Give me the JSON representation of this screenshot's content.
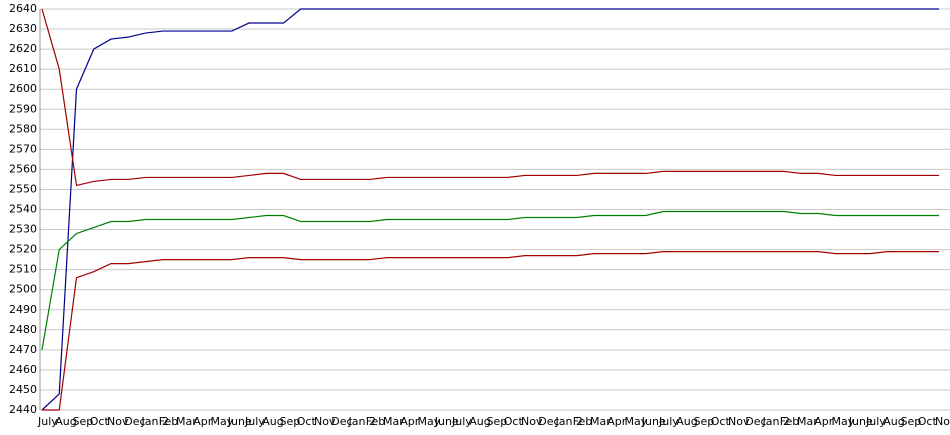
{
  "chart_data": {
    "type": "line",
    "categories": [
      "July",
      "Aug",
      "Sep",
      "Oct",
      "Nov",
      "Dec",
      "Jan 2",
      "Feb",
      "Mar",
      "Apr",
      "May",
      "June",
      "July",
      "Aug",
      "Sep",
      "Oct",
      "Nov",
      "Dec",
      "Jan 2",
      "Feb",
      "Mar",
      "Apr",
      "May",
      "June",
      "July",
      "Aug",
      "Sep",
      "Oct",
      "Nov",
      "Dec",
      "Jan 2",
      "Feb",
      "Mar",
      "Apr",
      "May",
      "June",
      "July",
      "Aug",
      "Sep",
      "Oct",
      "Nov",
      "Dec",
      "Jan 2",
      "Feb",
      "Mar",
      "Apr",
      "May",
      "June",
      "July",
      "Aug",
      "Sep",
      "Oct",
      "Nov"
    ],
    "series": [
      {
        "color": "#00008b",
        "values": [
          2440,
          2448,
          2600,
          2620,
          2625,
          2626,
          2628,
          2629,
          2629,
          2629,
          2629,
          2629,
          2633,
          2633,
          2633,
          2640,
          2640,
          2640,
          2640,
          2640,
          2640,
          2640,
          2640,
          2640,
          2640,
          2640,
          2640,
          2640,
          2640,
          2640,
          2640,
          2640,
          2640,
          2640,
          2640,
          2640,
          2640,
          2640,
          2640,
          2640,
          2640,
          2640,
          2640,
          2640,
          2640,
          2640,
          2640,
          2640,
          2640,
          2640,
          2640,
          2640,
          2640
        ]
      },
      {
        "color": "#a00000",
        "values": [
          2640,
          2610,
          2552,
          2554,
          2555,
          2555,
          2556,
          2556,
          2556,
          2556,
          2556,
          2556,
          2557,
          2558,
          2558,
          2555,
          2555,
          2555,
          2555,
          2555,
          2556,
          2556,
          2556,
          2556,
          2556,
          2556,
          2556,
          2556,
          2557,
          2557,
          2557,
          2557,
          2558,
          2558,
          2558,
          2558,
          2559,
          2559,
          2559,
          2559,
          2559,
          2559,
          2559,
          2559,
          2558,
          2558,
          2557,
          2557,
          2557,
          2557,
          2557,
          2557,
          2557
        ]
      },
      {
        "color": "#008000",
        "values": [
          2470,
          2520,
          2528,
          2531,
          2534,
          2534,
          2535,
          2535,
          2535,
          2535,
          2535,
          2535,
          2536,
          2537,
          2537,
          2534,
          2534,
          2534,
          2534,
          2534,
          2535,
          2535,
          2535,
          2535,
          2535,
          2535,
          2535,
          2535,
          2536,
          2536,
          2536,
          2536,
          2537,
          2537,
          2537,
          2537,
          2539,
          2539,
          2539,
          2539,
          2539,
          2539,
          2539,
          2539,
          2538,
          2538,
          2537,
          2537,
          2537,
          2537,
          2537,
          2537,
          2537
        ]
      },
      {
        "color": "#a00000",
        "values": [
          2440,
          2440,
          2506,
          2509,
          2513,
          2513,
          2514,
          2515,
          2515,
          2515,
          2515,
          2515,
          2516,
          2516,
          2516,
          2515,
          2515,
          2515,
          2515,
          2515,
          2516,
          2516,
          2516,
          2516,
          2516,
          2516,
          2516,
          2516,
          2517,
          2517,
          2517,
          2517,
          2518,
          2518,
          2518,
          2518,
          2519,
          2519,
          2519,
          2519,
          2519,
          2519,
          2519,
          2519,
          2519,
          2519,
          2518,
          2518,
          2518,
          2519,
          2519,
          2519,
          2519
        ]
      }
    ],
    "ylim": [
      2440,
      2640
    ],
    "yticks": [
      2440,
      2450,
      2460,
      2470,
      2480,
      2490,
      2500,
      2510,
      2520,
      2530,
      2540,
      2550,
      2560,
      2570,
      2580,
      2590,
      2600,
      2610,
      2620,
      2630,
      2640
    ],
    "grid": true
  }
}
